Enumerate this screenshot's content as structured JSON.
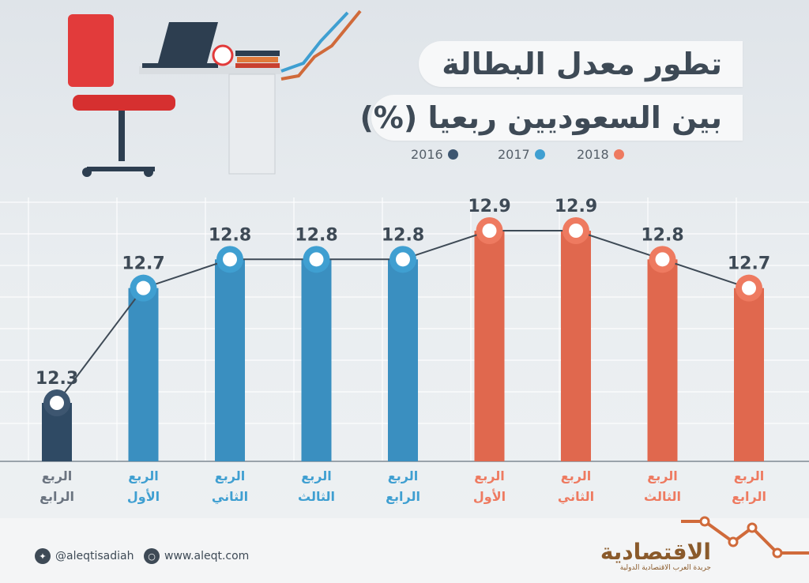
{
  "title_line1": "تطور معدل البطالة",
  "title_line2": "بين السعوديين ربعيا (%)",
  "legend": [
    {
      "label": "2016",
      "color": "#3d5670"
    },
    {
      "label": "2017",
      "color": "#3f9fd1"
    },
    {
      "label": "2018",
      "color": "#ee7a60"
    }
  ],
  "chart_data": {
    "type": "bar",
    "categories": [
      [
        "الربع",
        "الرابع"
      ],
      [
        "الربع",
        "الأول"
      ],
      [
        "الربع",
        "الثاني"
      ],
      [
        "الربع",
        "الثالث"
      ],
      [
        "الربع",
        "الرابع"
      ],
      [
        "الربع",
        "الأول"
      ],
      [
        "الربع",
        "الثاني"
      ],
      [
        "الربع",
        "الثالث"
      ],
      [
        "الربع",
        "الرابع"
      ]
    ],
    "values": [
      12.3,
      12.7,
      12.8,
      12.8,
      12.8,
      12.9,
      12.9,
      12.8,
      12.7
    ],
    "value_labels": [
      "12.3",
      "12.7",
      "12.8",
      "12.8",
      "12.8",
      "12.9",
      "12.9",
      "12.8",
      "12.7"
    ],
    "year_of_bar": [
      "2016",
      "2017",
      "2017",
      "2017",
      "2017",
      "2018",
      "2018",
      "2018",
      "2018"
    ],
    "colors": {
      "2016": {
        "bar": "#2f4a64",
        "ring": "#3d5670",
        "label": "#6b7480"
      },
      "2017": {
        "bar": "#3a8fc0",
        "ring": "#3f9fd1",
        "label": "#3f9fd1"
      },
      "2018": {
        "bar": "#e0684e",
        "ring": "#ee7a60",
        "label": "#ee7a60"
      }
    },
    "connector_line": true,
    "title": "تطور معدل البطالة بين السعوديين ربعيا (%)"
  },
  "footer": {
    "twitter": "@aleqtisadiah",
    "website": "www.aleqt.com",
    "logo_text": "الاقتصادية",
    "logo_sub": "جريدة العرب الاقتصادية الدولية"
  }
}
